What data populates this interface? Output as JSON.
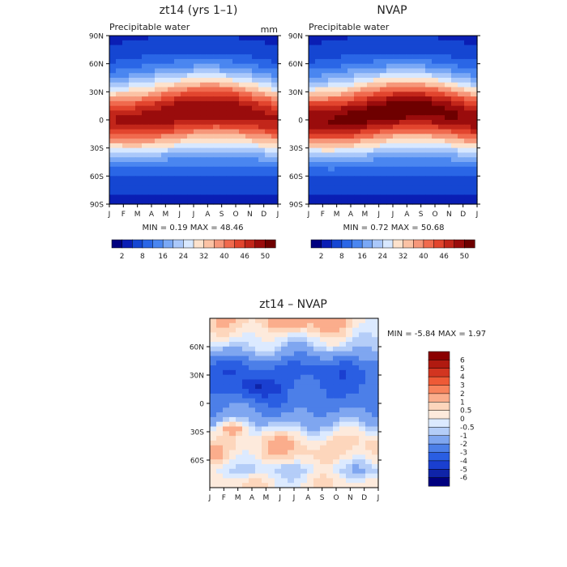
{
  "chart_data": [
    {
      "type": "heatmap",
      "title": "zt14 (yrs 1–1)",
      "subtitle": "Precipitable water",
      "units": "mm",
      "x_ticks": [
        "J",
        "F",
        "M",
        "A",
        "M",
        "J",
        "J",
        "A",
        "S",
        "O",
        "N",
        "D",
        "J"
      ],
      "y_ticks": [
        "90N",
        "60N",
        "30N",
        "0",
        "30S",
        "60S",
        "90S"
      ],
      "min_max_text": "MIN =    0.19 MAX =   48.46",
      "colorbar_ticks": [
        "2",
        "8",
        "16",
        "24",
        "32",
        "40",
        "46",
        "50"
      ],
      "colormap": [
        "#00007f",
        "#0a1eb4",
        "#1546d2",
        "#2a66e6",
        "#4a86f0",
        "#7aa8f5",
        "#aac8fa",
        "#d8e8ff",
        "#fde2cc",
        "#fbc2a4",
        "#f6977a",
        "#f06a4e",
        "#e2452e",
        "#c2261a",
        "#9a0c0c",
        "#6e0000"
      ],
      "min": 0.19,
      "max": 48.46
    },
    {
      "type": "heatmap",
      "title": "NVAP",
      "subtitle": "Precipitable water",
      "x_ticks": [
        "J",
        "F",
        "M",
        "A",
        "M",
        "J",
        "J",
        "A",
        "S",
        "O",
        "N",
        "D",
        "J"
      ],
      "y_ticks": [
        "90N",
        "60N",
        "30N",
        "0",
        "30S",
        "60S",
        "90S"
      ],
      "min_max_text": "MIN =    0.72 MAX =   50.68",
      "colorbar_ticks": [
        "2",
        "8",
        "16",
        "24",
        "32",
        "40",
        "46",
        "50"
      ],
      "colormap": [
        "#00007f",
        "#0a1eb4",
        "#1546d2",
        "#2a66e6",
        "#4a86f0",
        "#7aa8f5",
        "#aac8fa",
        "#d8e8ff",
        "#fde2cc",
        "#fbc2a4",
        "#f6977a",
        "#f06a4e",
        "#e2452e",
        "#c2261a",
        "#9a0c0c",
        "#6e0000"
      ],
      "min": 0.72,
      "max": 50.68
    },
    {
      "type": "heatmap",
      "title": "zt14 – NVAP",
      "x_ticks": [
        "J",
        "F",
        "M",
        "A",
        "M",
        "J",
        "J",
        "A",
        "S",
        "O",
        "N",
        "D",
        "J"
      ],
      "y_ticks": [
        "60N",
        "30N",
        "0",
        "30S",
        "60S"
      ],
      "min_max_text": "MIN =   -5.84 MAX =    1.97",
      "colorbar_levels": [
        "6",
        "5",
        "4",
        "3",
        "2",
        "1",
        "0.5",
        "0",
        "-0.5",
        "-1",
        "-2",
        "-3",
        "-4",
        "-5",
        "-6"
      ],
      "colorbar_colors": [
        "#8a0000",
        "#b01a10",
        "#d23520",
        "#ee5a36",
        "#f8835c",
        "#fbad8c",
        "#fdd6bc",
        "#fdeadc",
        "#dceaff",
        "#b4cdf8",
        "#7fa6f0",
        "#4c7fe8",
        "#2a5ee2",
        "#1a3fd0",
        "#0f24a8",
        "#00007f"
      ],
      "min": -5.84,
      "max": 1.97
    }
  ]
}
